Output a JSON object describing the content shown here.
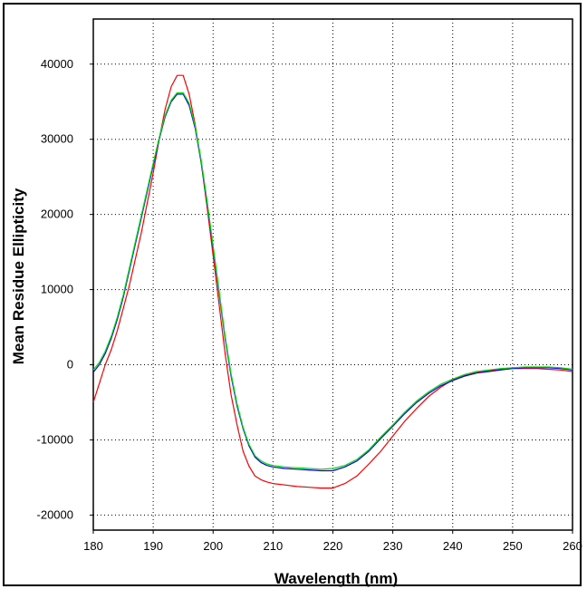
{
  "chart_data": {
    "type": "line",
    "title": "",
    "xlabel": "Wavelength (nm)",
    "ylabel": "Mean Residue Ellipticity",
    "xlim": [
      180,
      260
    ],
    "ylim": [
      -22000,
      46000
    ],
    "x_ticks": [
      180,
      190,
      200,
      210,
      220,
      230,
      240,
      250,
      260
    ],
    "y_ticks": [
      -20000,
      -10000,
      0,
      10000,
      20000,
      30000,
      40000
    ],
    "x_tick_labels": [
      "180",
      "190",
      "200",
      "210",
      "220",
      "230",
      "240",
      "250",
      "260"
    ],
    "y_tick_labels": [
      "-20000",
      "-10000",
      "0",
      "10000",
      "20000",
      "30000",
      "40000"
    ],
    "grid": true,
    "legend": "none",
    "series": [
      {
        "color": "#ff0000",
        "x": [
          180,
          181,
          182,
          183,
          184,
          185,
          186,
          187,
          188,
          189,
          190,
          191,
          192,
          193,
          194,
          195,
          196,
          197,
          198,
          199,
          200,
          201,
          202,
          203,
          204,
          205,
          206,
          207,
          208,
          209,
          210,
          212,
          214,
          216,
          218,
          220,
          222,
          224,
          226,
          228,
          230,
          232,
          234,
          236,
          238,
          240,
          242,
          244,
          246,
          248,
          250,
          252,
          254,
          256,
          258,
          260
        ],
        "y": [
          -5000,
          -2500,
          0,
          2000,
          4500,
          7500,
          10500,
          14000,
          17500,
          21500,
          25500,
          30000,
          34000,
          37000,
          38500,
          38500,
          36000,
          32000,
          27000,
          21000,
          14500,
          8000,
          1500,
          -4000,
          -8000,
          -11500,
          -13500,
          -14800,
          -15300,
          -15600,
          -15800,
          -16000,
          -16200,
          -16300,
          -16400,
          -16400,
          -15800,
          -14800,
          -13200,
          -11500,
          -9500,
          -7500,
          -5800,
          -4200,
          -3000,
          -2000,
          -1400,
          -1000,
          -800,
          -600,
          -500,
          -500,
          -500,
          -600,
          -700,
          -900
        ]
      },
      {
        "color": "#0000ff",
        "x": [
          180,
          181,
          182,
          183,
          184,
          185,
          186,
          187,
          188,
          189,
          190,
          191,
          192,
          193,
          194,
          195,
          196,
          197,
          198,
          199,
          200,
          201,
          202,
          203,
          204,
          205,
          206,
          207,
          208,
          209,
          210,
          212,
          214,
          216,
          218,
          220,
          222,
          224,
          226,
          228,
          230,
          232,
          234,
          236,
          238,
          240,
          242,
          244,
          246,
          248,
          250,
          252,
          254,
          256,
          258,
          260
        ],
        "y": [
          -1000,
          0,
          1500,
          3500,
          6000,
          9000,
          12500,
          16000,
          19500,
          23000,
          26500,
          30000,
          33000,
          35000,
          36000,
          36000,
          34500,
          31500,
          27000,
          21500,
          15500,
          9500,
          3500,
          -1500,
          -5500,
          -8500,
          -10800,
          -12300,
          -13000,
          -13400,
          -13600,
          -13800,
          -13900,
          -14000,
          -14100,
          -14100,
          -13600,
          -12800,
          -11500,
          -9800,
          -8200,
          -6500,
          -5000,
          -3800,
          -2800,
          -2100,
          -1500,
          -1100,
          -900,
          -700,
          -500,
          -400,
          -400,
          -400,
          -500,
          -700
        ]
      },
      {
        "color": "#00dd00",
        "x": [
          180,
          181,
          182,
          183,
          184,
          185,
          186,
          187,
          188,
          189,
          190,
          191,
          192,
          193,
          194,
          195,
          196,
          197,
          198,
          199,
          200,
          201,
          202,
          203,
          204,
          205,
          206,
          207,
          208,
          209,
          210,
          212,
          214,
          216,
          218,
          220,
          222,
          224,
          226,
          228,
          230,
          232,
          234,
          236,
          238,
          240,
          242,
          244,
          246,
          248,
          250,
          252,
          254,
          256,
          258,
          260
        ],
        "y": [
          -700,
          300,
          1800,
          3800,
          6300,
          9300,
          12800,
          16300,
          19800,
          23300,
          26800,
          30200,
          33200,
          35200,
          36200,
          36200,
          34800,
          31800,
          27300,
          21800,
          15800,
          9800,
          3800,
          -1200,
          -5200,
          -8300,
          -10600,
          -12100,
          -12800,
          -13200,
          -13400,
          -13600,
          -13700,
          -13800,
          -13900,
          -13800,
          -13400,
          -12600,
          -11300,
          -9600,
          -8000,
          -6300,
          -4800,
          -3600,
          -2600,
          -1900,
          -1300,
          -900,
          -700,
          -500,
          -400,
          -300,
          -300,
          -300,
          -400,
          -600
        ]
      }
    ]
  }
}
